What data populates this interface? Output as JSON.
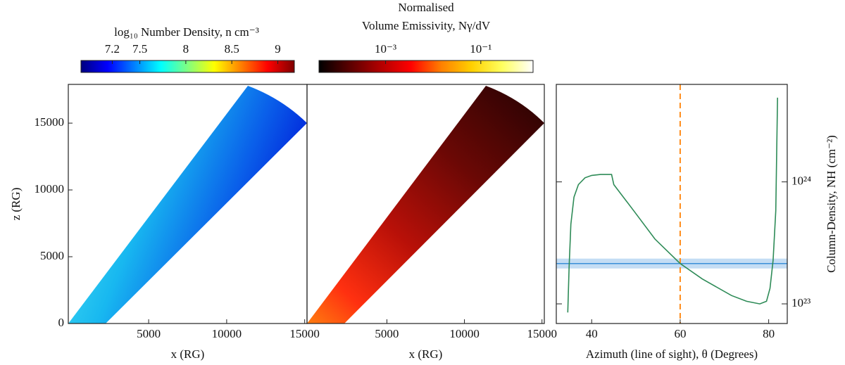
{
  "chart_data": [
    {
      "type": "colorbar",
      "label": "log₁₀ Number Density, n  cm⁻³",
      "clim": [
        6.86,
        9.18
      ],
      "ticks": [
        7.2,
        7.5,
        8.0,
        8.5,
        9.0
      ],
      "colormap": [
        "#00007f",
        "#0000ff",
        "#0080ff",
        "#00ffff",
        "#80ff80",
        "#ffff00",
        "#ff8000",
        "#ff0000",
        "#7f0000"
      ]
    },
    {
      "type": "colorbar",
      "title": "Normalised",
      "label": "Volume Emissivity, Nγ/dV",
      "log_scale": true,
      "clim": [
        4e-05,
        1.25
      ],
      "ticks": [
        {
          "value": 0.001,
          "label": "10⁻³"
        },
        {
          "value": 0.1,
          "label": "10⁻¹"
        }
      ],
      "colormap": [
        "#000000",
        "#5a0000",
        "#b00000",
        "#ff0000",
        "#ff8000",
        "#ffd000",
        "#ffff60",
        "#ffffff"
      ]
    },
    {
      "type": "map",
      "xlabel": "x  (RG)",
      "ylabel": "z  (RG)",
      "xlim": [
        -150,
        15150
      ],
      "ylim": [
        0,
        17900
      ],
      "xticks": [
        5000,
        10000,
        15000
      ],
      "yticks": [
        0,
        5000,
        10000,
        15000
      ]
    },
    {
      "type": "map",
      "xlabel": "x  (RG)",
      "xlim": [
        -150,
        15150
      ],
      "ylim": [
        0,
        17900
      ],
      "xticks": [
        5000,
        10000,
        15000
      ]
    },
    {
      "type": "line",
      "xlabel": "Azimuth (line of sight), θ  (Degrees)",
      "ylabel": "Column-Density, NH  (cm⁻²)",
      "xlim": [
        32,
        84.2
      ],
      "ylim": [
        6.9e+22,
        6.3e+24
      ],
      "log_scale": true,
      "xticks": [
        40,
        60,
        80
      ],
      "yticks": [
        {
          "value": 1e+23,
          "label": "10²³"
        },
        {
          "value": 1e+24,
          "label": "10²⁴"
        }
      ],
      "x": [
        34.6,
        34.9,
        35.3,
        36,
        37,
        38.5,
        40,
        42,
        44.5,
        45,
        49.5,
        54.3,
        60,
        65,
        71.6,
        75,
        78,
        79.5,
        80.3,
        81,
        81.6,
        82
      ],
      "series": [
        {
          "color": "#2e8b57",
          "values": [
            8.5e+22,
            2e+23,
            4.5e+23,
            7.5e+23,
            9.5e+23,
            1.08e+24,
            1.13e+24,
            1.15e+24,
            1.15e+24,
            9.5e+23,
            5.8e+23,
            3.4e+23,
            2.14e+23,
            1.6e+23,
            1.17e+23,
            1.05e+23,
            1e+23,
            1.05e+23,
            1.34e+23,
            2.28e+23,
            5.8e+23,
            4.9e+24
          ]
        }
      ],
      "vline": {
        "value": 60,
        "color": "#ff8c1a"
      },
      "band": {
        "value": 2.14e+23,
        "low": 1.95e+23,
        "high": 2.35e+23,
        "color": "#3a8fd9"
      }
    }
  ]
}
